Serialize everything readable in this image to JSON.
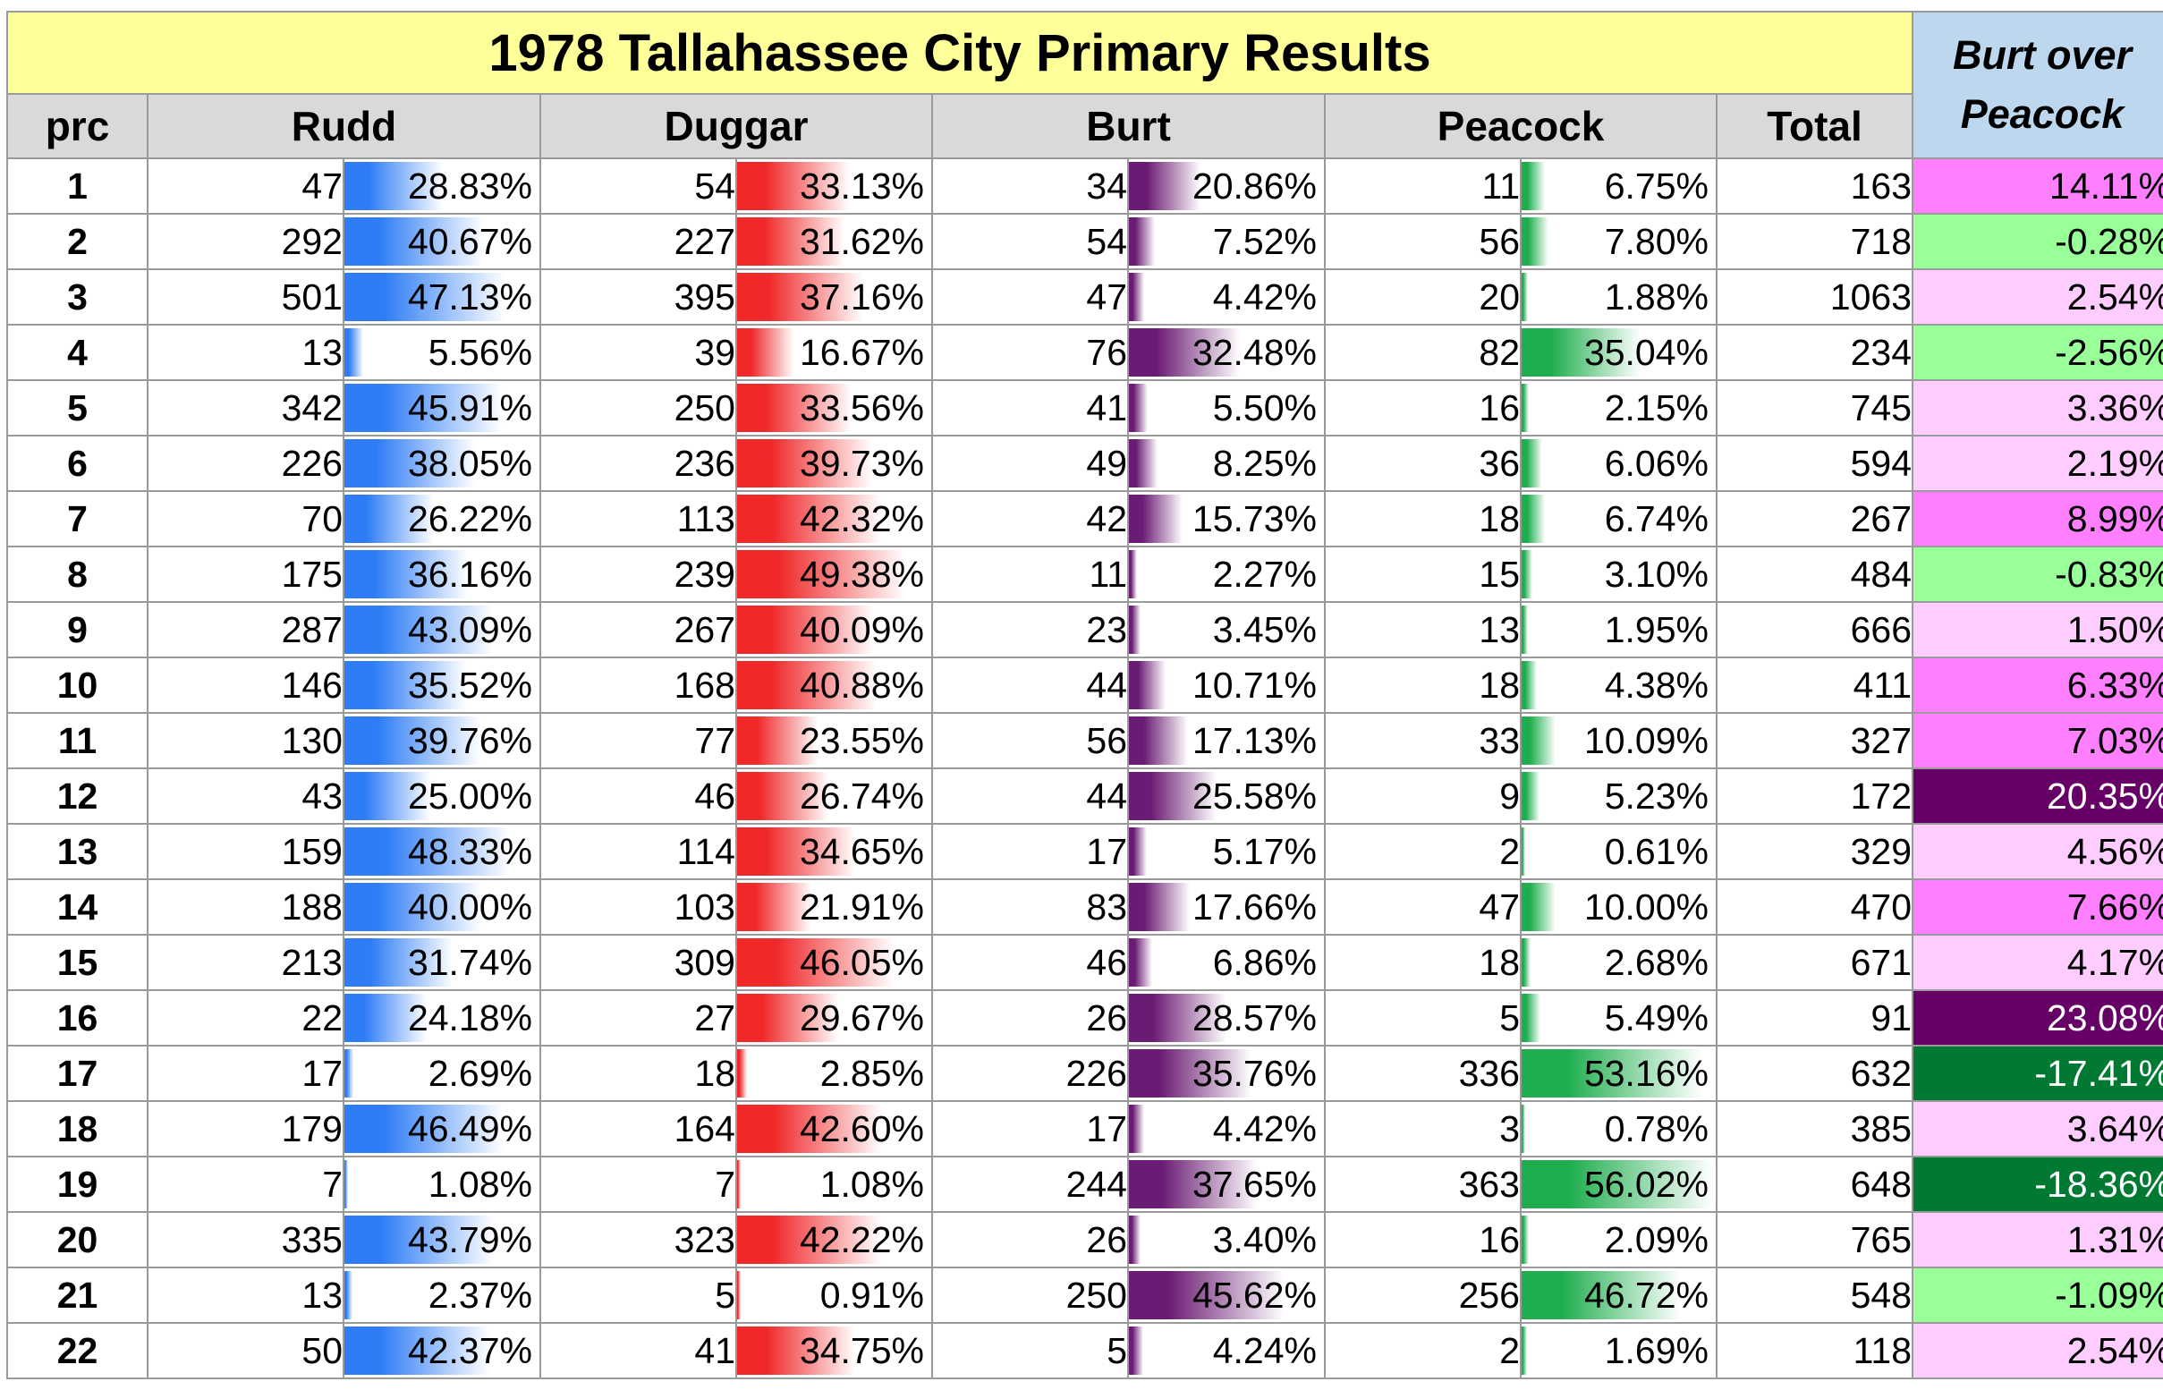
{
  "title": "1978 Tallahassee City Primary Results",
  "corner": {
    "line1": "Burt over",
    "line2": "Peacock"
  },
  "headers": {
    "prc": "prc",
    "rudd": "Rudd",
    "duggar": "Duggar",
    "burt": "Burt",
    "peacock": "Peacock",
    "total": "Total"
  },
  "colors": {
    "title_bg": "#ffff99",
    "corner_bg": "#bdd7ee",
    "header_bg": "#d9d9d9",
    "rudd_bar": "#2f7df6",
    "duggar_bar": "#f0282a",
    "burt_bar": "#6a1b73",
    "peacock_bar": "#1fae4e"
  },
  "rows": [
    {
      "prc": "1",
      "rudd": "47",
      "rudd_pct": "28.83%",
      "duggar": "54",
      "duggar_pct": "33.13%",
      "burt": "34",
      "burt_pct": "20.86%",
      "peacock": "11",
      "peacock_pct": "6.75%",
      "total": "163",
      "diff": "14.11%",
      "diff_color": "#ff80ff"
    },
    {
      "prc": "2",
      "rudd": "292",
      "rudd_pct": "40.67%",
      "duggar": "227",
      "duggar_pct": "31.62%",
      "burt": "54",
      "burt_pct": "7.52%",
      "peacock": "56",
      "peacock_pct": "7.80%",
      "total": "718",
      "diff": "-0.28%",
      "diff_color": "#99ff99"
    },
    {
      "prc": "3",
      "rudd": "501",
      "rudd_pct": "47.13%",
      "duggar": "395",
      "duggar_pct": "37.16%",
      "burt": "47",
      "burt_pct": "4.42%",
      "peacock": "20",
      "peacock_pct": "1.88%",
      "total": "1063",
      "diff": "2.54%",
      "diff_color": "#ffccff"
    },
    {
      "prc": "4",
      "rudd": "13",
      "rudd_pct": "5.56%",
      "duggar": "39",
      "duggar_pct": "16.67%",
      "burt": "76",
      "burt_pct": "32.48%",
      "peacock": "82",
      "peacock_pct": "35.04%",
      "total": "234",
      "diff": "-2.56%",
      "diff_color": "#99ff99"
    },
    {
      "prc": "5",
      "rudd": "342",
      "rudd_pct": "45.91%",
      "duggar": "250",
      "duggar_pct": "33.56%",
      "burt": "41",
      "burt_pct": "5.50%",
      "peacock": "16",
      "peacock_pct": "2.15%",
      "total": "745",
      "diff": "3.36%",
      "diff_color": "#ffccff"
    },
    {
      "prc": "6",
      "rudd": "226",
      "rudd_pct": "38.05%",
      "duggar": "236",
      "duggar_pct": "39.73%",
      "burt": "49",
      "burt_pct": "8.25%",
      "peacock": "36",
      "peacock_pct": "6.06%",
      "total": "594",
      "diff": "2.19%",
      "diff_color": "#ffccff"
    },
    {
      "prc": "7",
      "rudd": "70",
      "rudd_pct": "26.22%",
      "duggar": "113",
      "duggar_pct": "42.32%",
      "burt": "42",
      "burt_pct": "15.73%",
      "peacock": "18",
      "peacock_pct": "6.74%",
      "total": "267",
      "diff": "8.99%",
      "diff_color": "#ff80ff"
    },
    {
      "prc": "8",
      "rudd": "175",
      "rudd_pct": "36.16%",
      "duggar": "239",
      "duggar_pct": "49.38%",
      "burt": "11",
      "burt_pct": "2.27%",
      "peacock": "15",
      "peacock_pct": "3.10%",
      "total": "484",
      "diff": "-0.83%",
      "diff_color": "#99ff99"
    },
    {
      "prc": "9",
      "rudd": "287",
      "rudd_pct": "43.09%",
      "duggar": "267",
      "duggar_pct": "40.09%",
      "burt": "23",
      "burt_pct": "3.45%",
      "peacock": "13",
      "peacock_pct": "1.95%",
      "total": "666",
      "diff": "1.50%",
      "diff_color": "#ffccff"
    },
    {
      "prc": "10",
      "rudd": "146",
      "rudd_pct": "35.52%",
      "duggar": "168",
      "duggar_pct": "40.88%",
      "burt": "44",
      "burt_pct": "10.71%",
      "peacock": "18",
      "peacock_pct": "4.38%",
      "total": "411",
      "diff": "6.33%",
      "diff_color": "#ff80ff"
    },
    {
      "prc": "11",
      "rudd": "130",
      "rudd_pct": "39.76%",
      "duggar": "77",
      "duggar_pct": "23.55%",
      "burt": "56",
      "burt_pct": "17.13%",
      "peacock": "33",
      "peacock_pct": "10.09%",
      "total": "327",
      "diff": "7.03%",
      "diff_color": "#ff80ff"
    },
    {
      "prc": "12",
      "rudd": "43",
      "rudd_pct": "25.00%",
      "duggar": "46",
      "duggar_pct": "26.74%",
      "burt": "44",
      "burt_pct": "25.58%",
      "peacock": "9",
      "peacock_pct": "5.23%",
      "total": "172",
      "diff": "20.35%",
      "diff_color": "#660066",
      "diff_dark": true
    },
    {
      "prc": "13",
      "rudd": "159",
      "rudd_pct": "48.33%",
      "duggar": "114",
      "duggar_pct": "34.65%",
      "burt": "17",
      "burt_pct": "5.17%",
      "peacock": "2",
      "peacock_pct": "0.61%",
      "total": "329",
      "diff": "4.56%",
      "diff_color": "#ffccff"
    },
    {
      "prc": "14",
      "rudd": "188",
      "rudd_pct": "40.00%",
      "duggar": "103",
      "duggar_pct": "21.91%",
      "burt": "83",
      "burt_pct": "17.66%",
      "peacock": "47",
      "peacock_pct": "10.00%",
      "total": "470",
      "diff": "7.66%",
      "diff_color": "#ff80ff"
    },
    {
      "prc": "15",
      "rudd": "213",
      "rudd_pct": "31.74%",
      "duggar": "309",
      "duggar_pct": "46.05%",
      "burt": "46",
      "burt_pct": "6.86%",
      "peacock": "18",
      "peacock_pct": "2.68%",
      "total": "671",
      "diff": "4.17%",
      "diff_color": "#ffccff"
    },
    {
      "prc": "16",
      "rudd": "22",
      "rudd_pct": "24.18%",
      "duggar": "27",
      "duggar_pct": "29.67%",
      "burt": "26",
      "burt_pct": "28.57%",
      "peacock": "5",
      "peacock_pct": "5.49%",
      "total": "91",
      "diff": "23.08%",
      "diff_color": "#660066",
      "diff_dark": true
    },
    {
      "prc": "17",
      "rudd": "17",
      "rudd_pct": "2.69%",
      "duggar": "18",
      "duggar_pct": "2.85%",
      "burt": "226",
      "burt_pct": "35.76%",
      "peacock": "336",
      "peacock_pct": "53.16%",
      "total": "632",
      "diff": "-17.41%",
      "diff_color": "#007a33",
      "diff_dark": true
    },
    {
      "prc": "18",
      "rudd": "179",
      "rudd_pct": "46.49%",
      "duggar": "164",
      "duggar_pct": "42.60%",
      "burt": "17",
      "burt_pct": "4.42%",
      "peacock": "3",
      "peacock_pct": "0.78%",
      "total": "385",
      "diff": "3.64%",
      "diff_color": "#ffccff"
    },
    {
      "prc": "19",
      "rudd": "7",
      "rudd_pct": "1.08%",
      "duggar": "7",
      "duggar_pct": "1.08%",
      "burt": "244",
      "burt_pct": "37.65%",
      "peacock": "363",
      "peacock_pct": "56.02%",
      "total": "648",
      "diff": "-18.36%",
      "diff_color": "#007a33",
      "diff_dark": true
    },
    {
      "prc": "20",
      "rudd": "335",
      "rudd_pct": "43.79%",
      "duggar": "323",
      "duggar_pct": "42.22%",
      "burt": "26",
      "burt_pct": "3.40%",
      "peacock": "16",
      "peacock_pct": "2.09%",
      "total": "765",
      "diff": "1.31%",
      "diff_color": "#ffccff"
    },
    {
      "prc": "21",
      "rudd": "13",
      "rudd_pct": "2.37%",
      "duggar": "5",
      "duggar_pct": "0.91%",
      "burt": "250",
      "burt_pct": "45.62%",
      "peacock": "256",
      "peacock_pct": "46.72%",
      "total": "548",
      "diff": "-1.09%",
      "diff_color": "#99ff99"
    },
    {
      "prc": "22",
      "rudd": "50",
      "rudd_pct": "42.37%",
      "duggar": "41",
      "duggar_pct": "34.75%",
      "burt": "5",
      "burt_pct": "4.24%",
      "peacock": "2",
      "peacock_pct": "1.69%",
      "total": "118",
      "diff": "2.54%",
      "diff_color": "#ffccff"
    }
  ]
}
